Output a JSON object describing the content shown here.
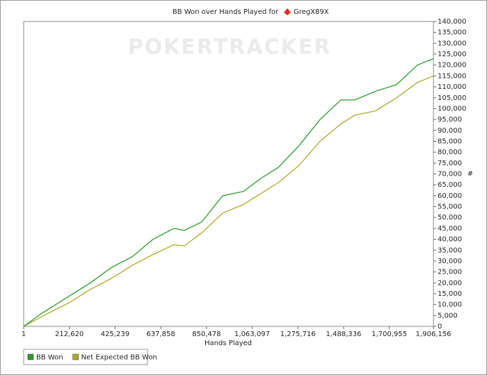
{
  "chart_data": {
    "type": "line",
    "title": "BB Won over Hands Played for",
    "player": "GregX89X",
    "watermark": "POKERTRACKER",
    "x_label": "Hands Played",
    "y_label": "#",
    "x": [
      1,
      84140,
      213590,
      310680,
      407770,
      504850,
      601940,
      699020,
      747560,
      828470,
      925560,
      1022650,
      1103550,
      1184460,
      1281550,
      1378630,
      1475720,
      1540440,
      1637530,
      1734610,
      1831720,
      1906156
    ],
    "series": [
      {
        "name": "BB Won",
        "color": "#2e9a2e",
        "values": [
          0,
          6000,
          14000,
          20000,
          27000,
          32000,
          40000,
          45000,
          44000,
          48000,
          60000,
          62000,
          68000,
          73000,
          83000,
          95000,
          104000,
          104000,
          108000,
          111000,
          120000,
          123000
        ]
      },
      {
        "name": "Net Expected BB Won",
        "color": "#b0a830",
        "values": [
          0,
          4500,
          11000,
          17000,
          22000,
          28000,
          33000,
          37500,
          37000,
          43000,
          52000,
          56000,
          61000,
          66000,
          74000,
          85000,
          93000,
          97000,
          99000,
          105000,
          112000,
          115000
        ]
      }
    ],
    "xlim": [
      1,
      1906156
    ],
    "xticks": [
      1,
      {
        "value": 212620,
        "label": "212,620"
      },
      {
        "value": 425239,
        "label": "425,239"
      },
      {
        "value": 637858,
        "label": "637,858"
      },
      {
        "value": 850478,
        "label": "850,478"
      },
      {
        "value": 1063097,
        "label": "1,063,097"
      },
      {
        "value": 1275716,
        "label": "1,275,716"
      },
      {
        "value": 1488336,
        "label": "1,488,336"
      },
      {
        "value": 1700955,
        "label": "1,700,955"
      },
      {
        "value": 1906156,
        "label": "1,906,156"
      }
    ],
    "ylim": [
      0,
      140000
    ],
    "yticks": [
      0,
      {
        "value": 5000,
        "label": "5,000"
      },
      {
        "value": 10000,
        "label": "10,000"
      },
      {
        "value": 15000,
        "label": "15,000"
      },
      {
        "value": 20000,
        "label": "20,000"
      },
      {
        "value": 25000,
        "label": "25,000"
      },
      {
        "value": 30000,
        "label": "30,000"
      },
      {
        "value": 35000,
        "label": "35,000"
      },
      {
        "value": 40000,
        "label": "40,000"
      },
      {
        "value": 45000,
        "label": "45,000"
      },
      {
        "value": 50000,
        "label": "50,000"
      },
      {
        "value": 55000,
        "label": "55,000"
      },
      {
        "value": 60000,
        "label": "60,000"
      },
      {
        "value": 65000,
        "label": "65,000"
      },
      {
        "value": 70000,
        "label": "70,000"
      },
      {
        "value": 75000,
        "label": "75,000"
      },
      {
        "value": 80000,
        "label": "80,000"
      },
      {
        "value": 85000,
        "label": "85,000"
      },
      {
        "value": 90000,
        "label": "90,000"
      },
      {
        "value": 95000,
        "label": "95,000"
      },
      {
        "value": 100000,
        "label": "100,000"
      },
      {
        "value": 105000,
        "label": "105,000"
      },
      {
        "value": 110000,
        "label": "110,000"
      },
      {
        "value": 115000,
        "label": "115,000"
      },
      {
        "value": 120000,
        "label": "120,000"
      },
      {
        "value": 125000,
        "label": "125,000"
      },
      {
        "value": 130000,
        "label": "130,000"
      },
      {
        "value": 135000,
        "label": "135,000"
      },
      {
        "value": 140000,
        "label": "140,000"
      }
    ],
    "legend": "bottom-left"
  }
}
